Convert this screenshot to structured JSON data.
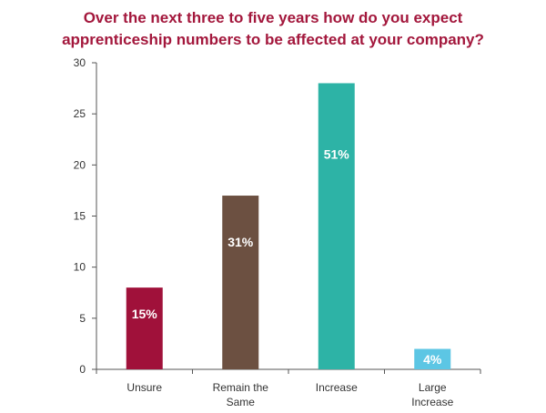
{
  "chart_data": {
    "type": "bar",
    "title_lines": [
      "Over the next three to five years how do you expect",
      "apprenticeship numbers to be affected at your company?"
    ],
    "categories": [
      [
        "Unsure"
      ],
      [
        "Remain the",
        "Same"
      ],
      [
        "Increase"
      ],
      [
        "Large",
        "Increase"
      ]
    ],
    "values": [
      8,
      17,
      28,
      2
    ],
    "data_labels": [
      "15%",
      "31%",
      "51%",
      "4%"
    ],
    "colors": [
      "#a0113a",
      "#6c5041",
      "#2db3a6",
      "#5cc6e4"
    ],
    "ylim": [
      0,
      30
    ],
    "yticks": [
      0,
      5,
      10,
      15,
      20,
      25,
      30
    ],
    "title_color": "#a3173c",
    "grid": false
  }
}
